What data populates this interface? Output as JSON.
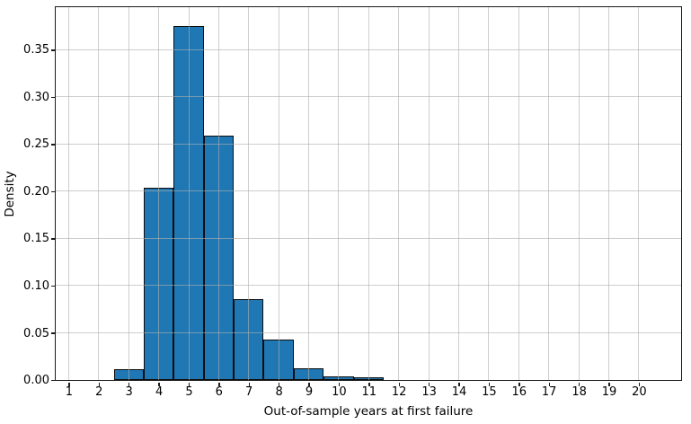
{
  "figure": {
    "background": "#ffffff"
  },
  "chart_data": {
    "type": "bar",
    "subtype": "histogram",
    "title": "",
    "xlabel": "Out-of-sample years at first failure",
    "ylabel": "Density",
    "bin_centers": [
      3,
      4,
      5,
      6,
      7,
      8,
      9,
      10,
      11
    ],
    "bin_width": 1,
    "values": [
      0.011,
      0.204,
      0.375,
      0.259,
      0.086,
      0.043,
      0.012,
      0.004,
      0.003
    ],
    "xticks": [
      1,
      2,
      3,
      4,
      5,
      6,
      7,
      8,
      9,
      10,
      11,
      12,
      13,
      14,
      15,
      16,
      17,
      18,
      19,
      20
    ],
    "yticks": [
      0,
      0.05,
      0.1,
      0.15,
      0.2,
      0.25,
      0.3,
      0.35
    ],
    "ytick_labels": [
      "0.00",
      "0.05",
      "0.10",
      "0.15",
      "0.20",
      "0.25",
      "0.30",
      "0.35"
    ],
    "xlim": [
      0.57,
      21.41
    ],
    "ylim": [
      0,
      0.395
    ],
    "grid": true,
    "grid_over_bars": true,
    "legend": null,
    "colors": {
      "bar_fill": "#1f77b4",
      "bar_edge": "#0d0d0d",
      "grid": "#b0b0b0",
      "spine": "#1a1a1a",
      "text": "#000000"
    }
  }
}
